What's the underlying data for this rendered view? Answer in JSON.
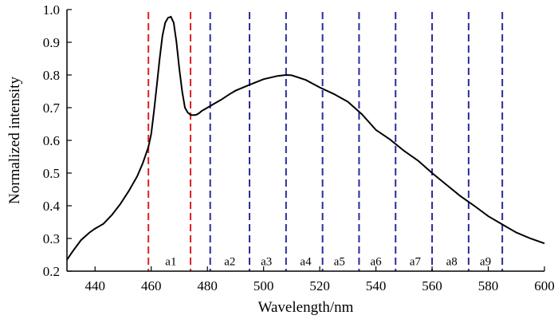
{
  "chart_data": {
    "type": "line",
    "xlabel": "Wavelength/nm",
    "ylabel": "Normalized intensity",
    "xlim": [
      430,
      600
    ],
    "ylim": [
      0.2,
      1.0
    ],
    "x_ticks": [
      440,
      460,
      480,
      500,
      520,
      540,
      560,
      580,
      600
    ],
    "y_ticks": [
      "0.2",
      "0.3",
      "0.4",
      "0.5",
      "0.6",
      "0.7",
      "0.8",
      "0.9",
      "1.0"
    ],
    "grid": false,
    "series": [
      {
        "color": "#000000",
        "x": [
          430,
          432,
          435,
          438,
          440,
          443,
          446,
          449,
          452,
          455,
          457,
          459,
          460,
          461,
          462,
          463,
          464,
          465,
          466,
          467,
          468,
          469,
          470,
          471,
          472,
          473,
          474,
          475,
          476,
          477,
          478,
          480,
          482,
          485,
          488,
          490,
          495,
          500,
          505,
          508,
          510,
          515,
          520,
          525,
          530,
          535,
          540,
          545,
          550,
          555,
          560,
          565,
          570,
          575,
          580,
          585,
          590,
          595,
          600
        ],
        "y": [
          0.235,
          0.26,
          0.295,
          0.318,
          0.33,
          0.345,
          0.372,
          0.405,
          0.445,
          0.49,
          0.53,
          0.58,
          0.62,
          0.69,
          0.77,
          0.85,
          0.92,
          0.96,
          0.975,
          0.978,
          0.96,
          0.9,
          0.82,
          0.75,
          0.7,
          0.685,
          0.678,
          0.677,
          0.678,
          0.683,
          0.69,
          0.7,
          0.71,
          0.725,
          0.742,
          0.752,
          0.77,
          0.787,
          0.797,
          0.8,
          0.799,
          0.785,
          0.762,
          0.742,
          0.718,
          0.68,
          0.632,
          0.603,
          0.568,
          0.538,
          0.5,
          0.465,
          0.43,
          0.4,
          0.368,
          0.343,
          0.318,
          0.3,
          0.285
        ]
      }
    ],
    "boundaries": [
      {
        "x": 459,
        "color": "#e02020"
      },
      {
        "x": 474,
        "color": "#e02020"
      },
      {
        "x": 481,
        "color": "#2b2b9a"
      },
      {
        "x": 495,
        "color": "#2b2b9a"
      },
      {
        "x": 508,
        "color": "#2b2b9a"
      },
      {
        "x": 521,
        "color": "#2b2b9a"
      },
      {
        "x": 534,
        "color": "#2b2b9a"
      },
      {
        "x": 547,
        "color": "#2b2b9a"
      },
      {
        "x": 560,
        "color": "#2b2b9a"
      },
      {
        "x": 573,
        "color": "#2b2b9a"
      },
      {
        "x": 585,
        "color": "#2b2b9a"
      }
    ],
    "bands": [
      {
        "label": "a1",
        "x": 467
      },
      {
        "label": "a2",
        "x": 488
      },
      {
        "label": "a3",
        "x": 501
      },
      {
        "label": "a4",
        "x": 515
      },
      {
        "label": "a5",
        "x": 527
      },
      {
        "label": "a6",
        "x": 540
      },
      {
        "label": "a7",
        "x": 554
      },
      {
        "label": "a8",
        "x": 567
      },
      {
        "label": "a9",
        "x": 579
      }
    ],
    "band_label_y": 0.23
  }
}
